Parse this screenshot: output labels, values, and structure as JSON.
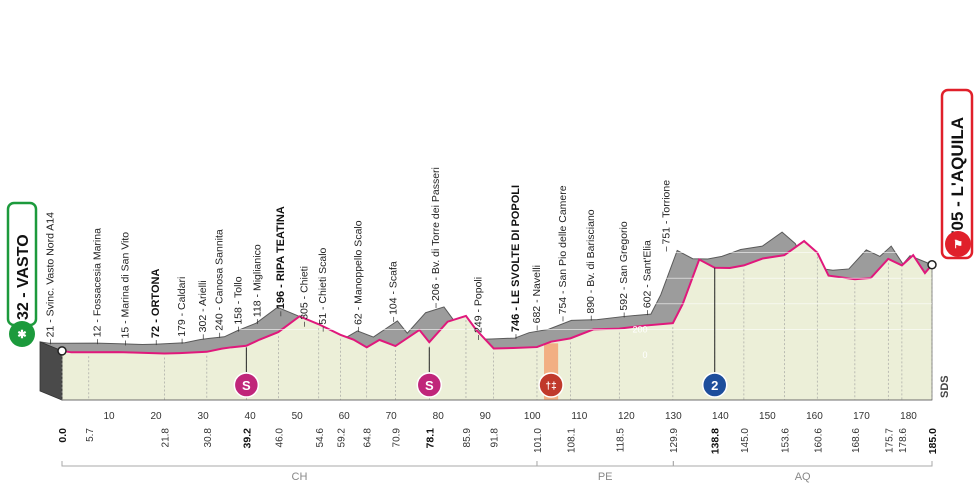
{
  "chart_data": {
    "type": "area",
    "start": {
      "label": "32 - VASTO"
    },
    "finish": {
      "label": "705 - L'AQUILA"
    },
    "logo_text": "SDS",
    "altitude_ticks": [
      0,
      200,
      400,
      600,
      800
    ],
    "ticks": [
      0,
      10,
      20,
      30,
      40,
      50,
      60,
      70,
      80,
      90,
      100,
      110,
      120,
      130,
      140,
      150,
      160,
      170,
      180
    ],
    "points": [
      {
        "km": 0,
        "elev": 32
      },
      {
        "km": 2,
        "elev": 21
      },
      {
        "km": 5.7,
        "elev": 21
      },
      {
        "km": 12,
        "elev": 22
      },
      {
        "km": 15,
        "elev": 20
      },
      {
        "km": 21.8,
        "elev": 12
      },
      {
        "km": 25,
        "elev": 15
      },
      {
        "km": 30.8,
        "elev": 25
      },
      {
        "km": 34,
        "elev": 50
      },
      {
        "km": 36,
        "elev": 60
      },
      {
        "km": 39.2,
        "elev": 72
      },
      {
        "km": 42,
        "elev": 120
      },
      {
        "km": 46.0,
        "elev": 179
      },
      {
        "km": 50.5,
        "elev": 302
      },
      {
        "km": 54.6,
        "elev": 240
      },
      {
        "km": 59.2,
        "elev": 158
      },
      {
        "km": 62,
        "elev": 120
      },
      {
        "km": 64.8,
        "elev": 60
      },
      {
        "km": 67.5,
        "elev": 118
      },
      {
        "km": 70.9,
        "elev": 70
      },
      {
        "km": 76,
        "elev": 196
      },
      {
        "km": 78.1,
        "elev": 100
      },
      {
        "km": 82,
        "elev": 260
      },
      {
        "km": 85.9,
        "elev": 305
      },
      {
        "km": 88,
        "elev": 200
      },
      {
        "km": 91.8,
        "elev": 51
      },
      {
        "km": 96,
        "elev": 55
      },
      {
        "km": 101.0,
        "elev": 62
      },
      {
        "km": 104,
        "elev": 104
      },
      {
        "km": 108.1,
        "elev": 130
      },
      {
        "km": 113,
        "elev": 200
      },
      {
        "km": 118.5,
        "elev": 206
      },
      {
        "km": 124,
        "elev": 230
      },
      {
        "km": 129.9,
        "elev": 249
      },
      {
        "km": 132,
        "elev": 400
      },
      {
        "km": 135.5,
        "elev": 746
      },
      {
        "km": 138.8,
        "elev": 682
      },
      {
        "km": 142,
        "elev": 680
      },
      {
        "km": 145.0,
        "elev": 700
      },
      {
        "km": 149,
        "elev": 754
      },
      {
        "km": 153.6,
        "elev": 780
      },
      {
        "km": 157.8,
        "elev": 890
      },
      {
        "km": 160.6,
        "elev": 800
      },
      {
        "km": 163,
        "elev": 620
      },
      {
        "km": 168.6,
        "elev": 592
      },
      {
        "km": 172,
        "elev": 602
      },
      {
        "km": 175.7,
        "elev": 751
      },
      {
        "km": 178.6,
        "elev": 700
      },
      {
        "km": 181,
        "elev": 780
      },
      {
        "km": 183.5,
        "elev": 640
      },
      {
        "km": 185.0,
        "elev": 705
      }
    ],
    "waypoints": [
      {
        "km": 2,
        "label": "21 - Svinc. Vasto Nord A14",
        "bold": false
      },
      {
        "km": 12,
        "label": "12 - Fossacesia Marina",
        "bold": false
      },
      {
        "km": 18,
        "label": "15 - Marina di San Vito",
        "bold": false
      },
      {
        "km": 24.5,
        "label": "72 - ORTONA",
        "bold": true
      },
      {
        "km": 30,
        "label": "179 - Caldari",
        "bold": false
      },
      {
        "km": 34.5,
        "label": "302 - Arielli",
        "bold": false
      },
      {
        "km": 38,
        "label": "240 - Canosa Sannita",
        "bold": false
      },
      {
        "km": 42,
        "label": "158 - Tollo",
        "bold": false
      },
      {
        "km": 46,
        "label": "118 - Miglianico",
        "bold": false
      },
      {
        "km": 51,
        "label": "196 - RIPA TEATINA",
        "bold": true
      },
      {
        "km": 56,
        "label": "305 - Chieti",
        "bold": false
      },
      {
        "km": 60,
        "label": "51 - Chieti Scalo",
        "bold": false
      },
      {
        "km": 67.5,
        "label": "62 - Manoppello Scalo",
        "bold": false
      },
      {
        "km": 75,
        "label": "104 - Scafa",
        "bold": false
      },
      {
        "km": 84,
        "label": "206 - Bv. di Torre dei Passeri",
        "bold": false
      },
      {
        "km": 93,
        "label": "249 - Popoli",
        "bold": false
      },
      {
        "km": 101,
        "label": "746 - LE SVOLTE DI POPOLI",
        "bold": true
      },
      {
        "km": 105.5,
        "label": "682 - Navelli",
        "bold": false
      },
      {
        "km": 111,
        "label": "754 - San Pio delle Camere",
        "bold": false
      },
      {
        "km": 117,
        "label": "890 - Bv. di Barisciano",
        "bold": false
      },
      {
        "km": 124,
        "label": "592 - San Gregorio",
        "bold": false
      },
      {
        "km": 129,
        "label": "602 - Sant'Elia",
        "bold": false
      },
      {
        "km": 133,
        "label": "751 - Torrione",
        "bold": false
      }
    ],
    "km_markers": [
      {
        "km": 0.0,
        "label": "0.0",
        "bold": true
      },
      {
        "km": 5.7,
        "label": "5.7",
        "bold": false
      },
      {
        "km": 21.8,
        "label": "21.8",
        "bold": false
      },
      {
        "km": 30.8,
        "label": "30.8",
        "bold": false
      },
      {
        "km": 39.2,
        "label": "39.2",
        "bold": true
      },
      {
        "km": 46.0,
        "label": "46.0",
        "bold": false
      },
      {
        "km": 54.6,
        "label": "54.6",
        "bold": false
      },
      {
        "km": 59.2,
        "label": "59.2",
        "bold": false
      },
      {
        "km": 64.8,
        "label": "64.8",
        "bold": false
      },
      {
        "km": 70.9,
        "label": "70.9",
        "bold": false
      },
      {
        "km": 78.1,
        "label": "78.1",
        "bold": true
      },
      {
        "km": 85.9,
        "label": "85.9",
        "bold": false
      },
      {
        "km": 91.8,
        "label": "91.8",
        "bold": false
      },
      {
        "km": 101.0,
        "label": "101.0",
        "bold": false
      },
      {
        "km": 108.1,
        "label": "108.1",
        "bold": false
      },
      {
        "km": 118.5,
        "label": "118.5",
        "bold": false
      },
      {
        "km": 129.9,
        "label": "129.9",
        "bold": false
      },
      {
        "km": 138.8,
        "label": "138.8",
        "bold": true
      },
      {
        "km": 145.0,
        "label": "145.0",
        "bold": false
      },
      {
        "km": 153.6,
        "label": "153.6",
        "bold": false
      },
      {
        "km": 160.6,
        "label": "160.6",
        "bold": false
      },
      {
        "km": 168.6,
        "label": "168.6",
        "bold": false
      },
      {
        "km": 175.7,
        "label": "175.7",
        "bold": false
      },
      {
        "km": 178.6,
        "label": "178.6",
        "bold": false
      },
      {
        "km": 185.0,
        "label": "185.0",
        "bold": true
      }
    ],
    "regions": [
      {
        "label": "CH",
        "from_km": 0,
        "to_km": 101
      },
      {
        "label": "PE",
        "from_km": 101,
        "to_km": 130
      },
      {
        "label": "AQ",
        "from_km": 130,
        "to_km": 185
      }
    ],
    "sprints": [
      {
        "km": 39.2,
        "symbol": "S"
      },
      {
        "km": 78.1,
        "symbol": "S"
      }
    ],
    "feed_zone": {
      "km": 104,
      "from_km": 102.5,
      "to_km": 105.5
    },
    "kom": {
      "km": 138.8,
      "symbol": "2"
    },
    "colors": {
      "profile_top": "#9c9c9c",
      "profile_front": "#ecefd8",
      "road_line": "#e0187c",
      "start_green": "#1c9a3c",
      "finish_red": "#e0202a",
      "sprint_magenta": "#c0267a",
      "kom_blue": "#1d4e9c",
      "feed_orange": "#f3a374"
    }
  }
}
